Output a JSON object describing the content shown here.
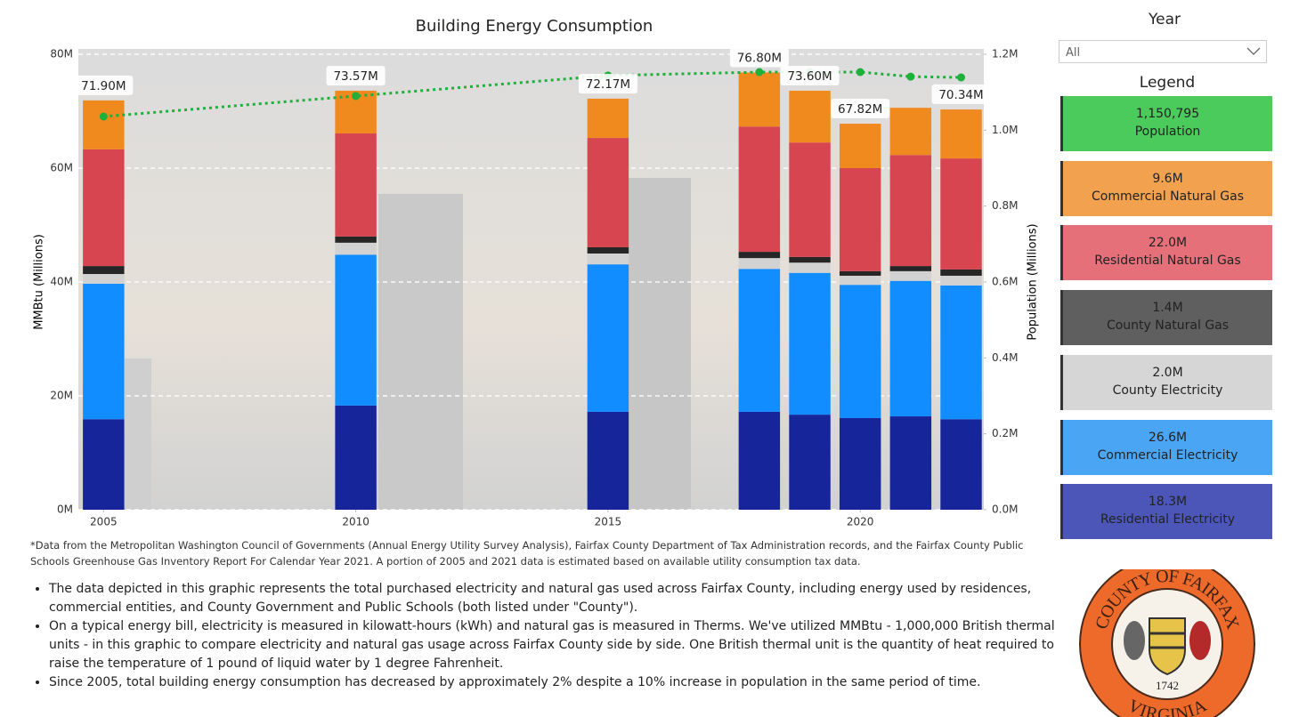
{
  "chart_data": {
    "type": "bar",
    "stacked": true,
    "title": "Building Energy Consumption",
    "y_label": "MMBtu (Millions)",
    "y2_label": "Population (Millions)",
    "x": [
      2005,
      2010,
      2015,
      2018,
      2019,
      2020,
      2021,
      2022
    ],
    "xlim": [
      2004.5,
      2022.45
    ],
    "xticks": [
      2005,
      2010,
      2015,
      2020
    ],
    "ylim": [
      0,
      80
    ],
    "yticks": [
      {
        "value": 0,
        "label": "0M"
      },
      {
        "value": 20,
        "label": "20M"
      },
      {
        "value": 40,
        "label": "40M"
      },
      {
        "value": 60,
        "label": "60M"
      },
      {
        "value": 80,
        "label": "80M"
      }
    ],
    "y2lim": [
      0,
      1.2
    ],
    "y2ticks": [
      {
        "value": 0,
        "label": "0.0M"
      },
      {
        "value": 0.2,
        "label": "0.2M"
      },
      {
        "value": 0.4,
        "label": "0.4M"
      },
      {
        "value": 0.6,
        "label": "0.6M"
      },
      {
        "value": 0.8,
        "label": "0.8M"
      },
      {
        "value": 1.0,
        "label": "1.0M"
      },
      {
        "value": 1.2,
        "label": "1.2M"
      }
    ],
    "grid": true,
    "series": [
      {
        "name": "Residential Electricity",
        "color": "#17259b",
        "values": [
          15.9,
          18.3,
          17.2,
          17.2,
          16.7,
          16.1,
          16.4,
          15.9
        ]
      },
      {
        "name": "Commercial Electricity",
        "color": "#118dff",
        "values": [
          23.8,
          26.5,
          25.9,
          25.1,
          24.9,
          23.4,
          23.8,
          23.5
        ]
      },
      {
        "name": "County Electricity",
        "color": "#d2d2d2",
        "values": [
          1.7,
          2.1,
          1.9,
          1.9,
          1.8,
          1.6,
          1.7,
          1.7
        ]
      },
      {
        "name": "County Natural Gas",
        "color": "#262626",
        "values": [
          1.4,
          1.1,
          1.1,
          1.1,
          1.0,
          0.8,
          0.9,
          1.1
        ]
      },
      {
        "name": "Residential Natural Gas",
        "color": "#d64550",
        "values": [
          20.5,
          18.1,
          19.2,
          22.0,
          20.1,
          18.1,
          19.5,
          19.5
        ]
      },
      {
        "name": "Commercial Natural Gas",
        "color": "#f0891e",
        "values": [
          8.6,
          7.5,
          6.9,
          9.5,
          9.1,
          7.8,
          8.3,
          8.6
        ]
      },
      {
        "name": "Population",
        "color": "#1fb03c",
        "type": "line",
        "axis": "y2",
        "values": [
          1.036,
          1.09,
          1.144,
          1.153,
          1.153,
          1.153,
          1.141,
          1.139
        ]
      }
    ],
    "totals": {
      "values": [
        71.9,
        73.57,
        72.17,
        76.8,
        73.6,
        67.82,
        null,
        70.34
      ],
      "value_labels": [
        "71.90M",
        "73.57M",
        "72.17M",
        "76.80M",
        "73.60M",
        "67.82M",
        null,
        "70.34M"
      ]
    }
  },
  "slicer": {
    "title": "Year",
    "selected": "All"
  },
  "legend": {
    "title": "Legend",
    "values": [
      "1,150,795",
      "9.6M",
      "22.0M",
      "1.4M",
      "2.0M",
      "26.6M",
      "18.3M"
    ],
    "colors": [
      "#4ccb5d",
      "#f2a24f",
      "#e5707a",
      "#5f5f5f",
      "#d6d6d6",
      "#4aa6f5",
      "#4c56b8"
    ]
  },
  "notes": {
    "footnote": "*Data from the Metropolitan Washington Council of Governments (Annual Energy Utility Survey Analysis), Fairfax County Department of Tax Administration records, and the Fairfax County Public Schools Greenhouse Gas Inventory Report For Calendar Year 2021. A portion of 2005 and 2021 data is estimated based on available utility consumption tax data.",
    "bullets": [
      "The data depicted in this graphic represents the total purchased electricity and natural gas used across Fairfax County, including energy used by residences, commercial entities, and County Government and Public Schools (both listed under \"County\").",
      "On a typical energy bill, electricity is measured in kilowatt-hours (kWh) and natural gas is measured in Therms. We've utilized MMBtu - 1,000,000 British thermal units - in this graphic to compare electricity and natural gas usage across Fairfax County side by side. One British thermal unit is the quantity of heat required to raise the temperature of 1 pound of liquid water by 1 degree Fahrenheit.",
      "Since 2005, total building energy consumption has decreased by approximately 2% despite a 10% increase in population in the same period of time."
    ]
  },
  "seal": {
    "top": "COUNTY OF FAIRFAX",
    "bottom": "VIRGINIA",
    "year": "1742"
  }
}
